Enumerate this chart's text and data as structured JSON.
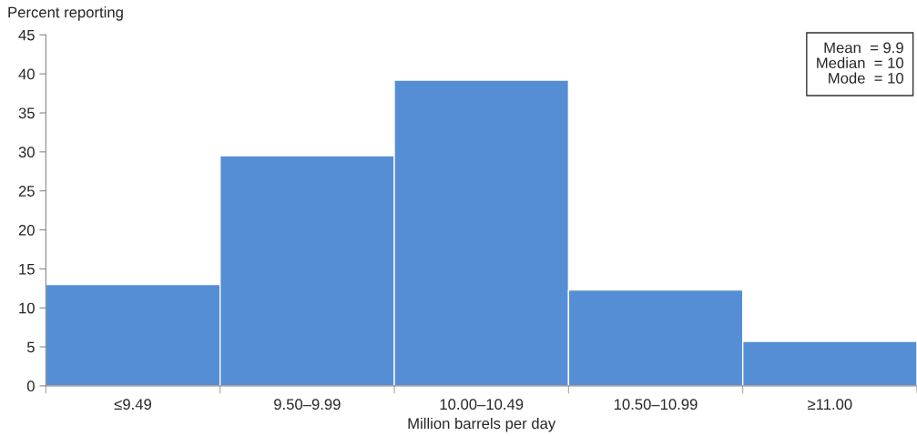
{
  "chart_data": {
    "type": "bar",
    "ylabel": "Percent reporting",
    "xlabel": "Million barrels per day",
    "categories": [
      "≤9.49",
      "9.50–9.99",
      "10.00–10.49",
      "10.50–10.99",
      "≥11.00"
    ],
    "values": [
      13.0,
      29.5,
      39.2,
      12.3,
      5.7
    ],
    "color": "#558ed5",
    "ylim": [
      0,
      45
    ],
    "yticks": [
      0,
      5,
      10,
      15,
      20,
      25,
      30,
      35,
      40,
      45
    ],
    "grid": false,
    "legend": false,
    "annotations": [
      "Mean  = 9.9",
      "Median  = 10",
      "Mode  = 10"
    ]
  }
}
